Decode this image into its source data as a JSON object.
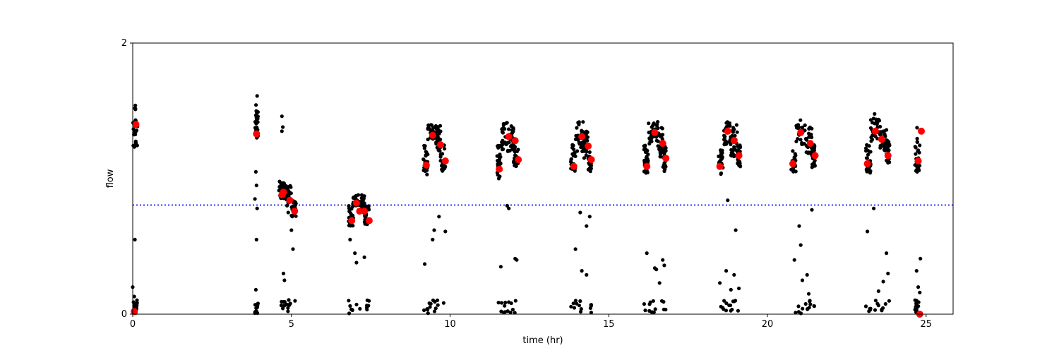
{
  "chart_data": {
    "type": "scatter",
    "title": "",
    "xlabel": "time (hr)",
    "ylabel": "flow",
    "xlim": [
      0,
      25.85
    ],
    "ylim": [
      0,
      2
    ],
    "xticks": [
      0,
      5,
      10,
      15,
      20,
      25
    ],
    "yticks": [
      0,
      2
    ],
    "grid": false,
    "legend": "none",
    "colors": {
      "raw": "#000000",
      "mean": "#ff0000",
      "threshold": "#0000ff"
    },
    "threshold": 0.805,
    "segments": [
      {
        "x": [
          0.0,
          0.15
        ],
        "y": [
          1.2,
          1.55
        ]
      },
      {
        "x": [
          3.85,
          3.95
        ],
        "y": [
          1.3,
          1.55
        ]
      },
      {
        "x": [
          4.6,
          4.78
        ],
        "y": [
          0.85,
          0.98
        ]
      },
      {
        "x": [
          4.8,
          5.0
        ],
        "y": [
          0.8,
          0.95
        ]
      },
      {
        "x": [
          5.0,
          5.15
        ],
        "y": [
          0.72,
          0.85
        ]
      },
      {
        "x": [
          6.8,
          6.95
        ],
        "y": [
          0.65,
          0.82
        ]
      },
      {
        "x": [
          6.95,
          7.15
        ],
        "y": [
          0.8,
          0.88
        ]
      },
      {
        "x": [
          7.2,
          7.3
        ],
        "y": [
          0.78,
          0.88
        ]
      },
      {
        "x": [
          7.3,
          7.45
        ],
        "y": [
          0.65,
          0.8
        ]
      },
      {
        "x": [
          9.15,
          9.3
        ],
        "y": [
          1.03,
          1.25
        ]
      },
      {
        "x": [
          9.3,
          9.55
        ],
        "y": [
          1.28,
          1.42
        ]
      },
      {
        "x": [
          9.55,
          9.7
        ],
        "y": [
          1.2,
          1.4
        ]
      },
      {
        "x": [
          9.7,
          9.85
        ],
        "y": [
          1.05,
          1.25
        ]
      },
      {
        "x": [
          11.45,
          11.6
        ],
        "y": [
          1.0,
          1.25
        ]
      },
      {
        "x": [
          11.6,
          11.85
        ],
        "y": [
          1.2,
          1.42
        ]
      },
      {
        "x": [
          11.85,
          12.0
        ],
        "y": [
          1.2,
          1.4
        ]
      },
      {
        "x": [
          12.0,
          12.15
        ],
        "y": [
          1.08,
          1.25
        ]
      },
      {
        "x": [
          13.8,
          13.95
        ],
        "y": [
          1.03,
          1.25
        ]
      },
      {
        "x": [
          13.95,
          14.2
        ],
        "y": [
          1.2,
          1.42
        ]
      },
      {
        "x": [
          14.2,
          14.35
        ],
        "y": [
          1.15,
          1.35
        ]
      },
      {
        "x": [
          14.35,
          14.45
        ],
        "y": [
          1.05,
          1.2
        ]
      },
      {
        "x": [
          16.1,
          16.25
        ],
        "y": [
          1.03,
          1.25
        ]
      },
      {
        "x": [
          16.25,
          16.55
        ],
        "y": [
          1.25,
          1.42
        ]
      },
      {
        "x": [
          16.55,
          16.7
        ],
        "y": [
          1.15,
          1.38
        ]
      },
      {
        "x": [
          16.7,
          16.8
        ],
        "y": [
          1.05,
          1.25
        ]
      },
      {
        "x": [
          18.45,
          18.6
        ],
        "y": [
          1.03,
          1.22
        ]
      },
      {
        "x": [
          18.6,
          18.85
        ],
        "y": [
          1.25,
          1.42
        ]
      },
      {
        "x": [
          18.85,
          19.05
        ],
        "y": [
          1.15,
          1.4
        ]
      },
      {
        "x": [
          19.05,
          19.15
        ],
        "y": [
          1.08,
          1.25
        ]
      },
      {
        "x": [
          20.75,
          20.9
        ],
        "y": [
          1.05,
          1.22
        ]
      },
      {
        "x": [
          20.9,
          21.2
        ],
        "y": [
          1.25,
          1.45
        ]
      },
      {
        "x": [
          21.2,
          21.4
        ],
        "y": [
          1.15,
          1.38
        ]
      },
      {
        "x": [
          21.4,
          21.5
        ],
        "y": [
          1.08,
          1.25
        ]
      },
      {
        "x": [
          23.1,
          23.25
        ],
        "y": [
          1.03,
          1.25
        ]
      },
      {
        "x": [
          23.25,
          23.55
        ],
        "y": [
          1.25,
          1.5
        ]
      },
      {
        "x": [
          23.55,
          23.75
        ],
        "y": [
          1.2,
          1.38
        ]
      },
      {
        "x": [
          23.75,
          23.85
        ],
        "y": [
          1.1,
          1.3
        ]
      },
      {
        "x": [
          24.65,
          24.8
        ],
        "y": [
          1.05,
          1.38
        ]
      }
    ],
    "low_bands": [
      [
        0.0,
        0.15
      ],
      [
        3.85,
        3.95
      ],
      [
        4.6,
        5.15
      ],
      [
        6.8,
        7.45
      ],
      [
        9.15,
        9.85
      ],
      [
        11.45,
        12.15
      ],
      [
        13.8,
        14.45
      ],
      [
        16.1,
        16.8
      ],
      [
        18.45,
        19.15
      ],
      [
        20.75,
        21.5
      ],
      [
        23.1,
        23.85
      ],
      [
        24.65,
        24.8
      ]
    ],
    "outliers": [
      [
        0.07,
        0.55
      ],
      [
        0.0,
        0.2
      ],
      [
        0.05,
        0.13
      ],
      [
        0.1,
        0.05
      ],
      [
        3.92,
        1.61
      ],
      [
        3.9,
        1.45
      ],
      [
        3.88,
        1.05
      ],
      [
        3.9,
        0.95
      ],
      [
        3.85,
        0.85
      ],
      [
        3.92,
        0.78
      ],
      [
        3.9,
        0.55
      ],
      [
        3.88,
        0.18
      ],
      [
        3.9,
        0.05
      ],
      [
        4.7,
        1.46
      ],
      [
        4.73,
        1.38
      ],
      [
        4.7,
        1.35
      ],
      [
        4.9,
        0.75
      ],
      [
        5.0,
        0.62
      ],
      [
        5.05,
        0.48
      ],
      [
        4.75,
        0.3
      ],
      [
        4.78,
        0.25
      ],
      [
        6.85,
        0.55
      ],
      [
        7.0,
        0.45
      ],
      [
        7.05,
        0.38
      ],
      [
        7.3,
        0.42
      ],
      [
        9.2,
        0.37
      ],
      [
        9.45,
        0.55
      ],
      [
        9.5,
        0.62
      ],
      [
        9.65,
        0.72
      ],
      [
        9.85,
        0.61
      ],
      [
        11.6,
        0.35
      ],
      [
        11.8,
        0.8
      ],
      [
        11.85,
        0.78
      ],
      [
        12.1,
        0.4
      ],
      [
        12.05,
        0.41
      ],
      [
        13.95,
        0.48
      ],
      [
        14.1,
        0.75
      ],
      [
        14.15,
        0.32
      ],
      [
        14.3,
        0.29
      ],
      [
        14.3,
        0.65
      ],
      [
        14.4,
        0.72
      ],
      [
        16.2,
        0.45
      ],
      [
        16.45,
        0.34
      ],
      [
        16.5,
        0.33
      ],
      [
        16.7,
        0.4
      ],
      [
        16.75,
        0.36
      ],
      [
        16.6,
        0.23
      ],
      [
        18.5,
        0.23
      ],
      [
        18.7,
        0.32
      ],
      [
        18.75,
        0.84
      ],
      [
        18.85,
        0.18
      ],
      [
        18.95,
        0.29
      ],
      [
        19.0,
        0.62
      ],
      [
        19.1,
        0.19
      ],
      [
        20.85,
        0.4
      ],
      [
        21.0,
        0.65
      ],
      [
        21.05,
        0.51
      ],
      [
        21.1,
        0.25
      ],
      [
        21.25,
        0.29
      ],
      [
        21.3,
        0.15
      ],
      [
        21.4,
        0.77
      ],
      [
        23.15,
        0.61
      ],
      [
        23.35,
        0.78
      ],
      [
        23.5,
        0.17
      ],
      [
        23.65,
        0.24
      ],
      [
        23.75,
        0.45
      ],
      [
        23.8,
        0.3
      ],
      [
        24.7,
        0.32
      ],
      [
        24.75,
        0.2
      ],
      [
        24.8,
        0.16
      ],
      [
        24.82,
        0.41
      ],
      [
        24.7,
        0.1
      ]
    ],
    "mean_points": [
      {
        "x": 0.1,
        "y": 1.4
      },
      {
        "x": 0.05,
        "y": 0.02
      },
      {
        "x": 3.9,
        "y": 1.33
      },
      {
        "x": 4.7,
        "y": 0.88
      },
      {
        "x": 4.75,
        "y": 0.9
      },
      {
        "x": 4.95,
        "y": 0.84
      },
      {
        "x": 5.1,
        "y": 0.76
      },
      {
        "x": 6.9,
        "y": 0.69
      },
      {
        "x": 7.05,
        "y": 0.82
      },
      {
        "x": 7.15,
        "y": 0.76
      },
      {
        "x": 7.3,
        "y": 0.76
      },
      {
        "x": 7.45,
        "y": 0.69
      },
      {
        "x": 9.25,
        "y": 1.1
      },
      {
        "x": 9.45,
        "y": 1.32
      },
      {
        "x": 9.7,
        "y": 1.25
      },
      {
        "x": 9.85,
        "y": 1.13
      },
      {
        "x": 11.55,
        "y": 1.07
      },
      {
        "x": 11.85,
        "y": 1.31
      },
      {
        "x": 12.05,
        "y": 1.28
      },
      {
        "x": 12.15,
        "y": 1.14
      },
      {
        "x": 13.9,
        "y": 1.09
      },
      {
        "x": 14.15,
        "y": 1.31
      },
      {
        "x": 14.35,
        "y": 1.24
      },
      {
        "x": 14.45,
        "y": 1.14
      },
      {
        "x": 16.2,
        "y": 1.09
      },
      {
        "x": 16.45,
        "y": 1.34
      },
      {
        "x": 16.7,
        "y": 1.26
      },
      {
        "x": 16.8,
        "y": 1.15
      },
      {
        "x": 18.5,
        "y": 1.09
      },
      {
        "x": 18.75,
        "y": 1.35
      },
      {
        "x": 18.95,
        "y": 1.28
      },
      {
        "x": 19.1,
        "y": 1.17
      },
      {
        "x": 20.8,
        "y": 1.11
      },
      {
        "x": 21.05,
        "y": 1.34
      },
      {
        "x": 21.35,
        "y": 1.26
      },
      {
        "x": 21.5,
        "y": 1.17
      },
      {
        "x": 23.15,
        "y": 1.11
      },
      {
        "x": 23.4,
        "y": 1.35
      },
      {
        "x": 23.6,
        "y": 1.29
      },
      {
        "x": 23.8,
        "y": 1.17
      },
      {
        "x": 24.75,
        "y": 1.13
      },
      {
        "x": 24.85,
        "y": 1.35
      },
      {
        "x": 24.8,
        "y": 0.0
      }
    ]
  }
}
